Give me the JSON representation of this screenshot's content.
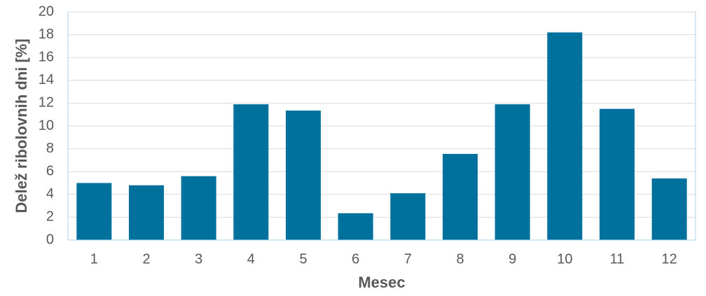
{
  "chart_data": {
    "type": "bar",
    "categories": [
      "1",
      "2",
      "3",
      "4",
      "5",
      "6",
      "7",
      "8",
      "9",
      "10",
      "11",
      "12"
    ],
    "values": [
      5.0,
      4.8,
      5.6,
      11.9,
      11.35,
      2.35,
      4.1,
      7.55,
      11.9,
      18.2,
      11.5,
      5.4
    ],
    "color": "#00709c",
    "xlabel": "Mesec",
    "ylabel": "Delež ribolovnih dni [%]",
    "ylim": [
      0,
      20
    ],
    "yticks": [
      0,
      2,
      4,
      6,
      8,
      10,
      12,
      14,
      16,
      18,
      20
    ],
    "grid": true
  }
}
